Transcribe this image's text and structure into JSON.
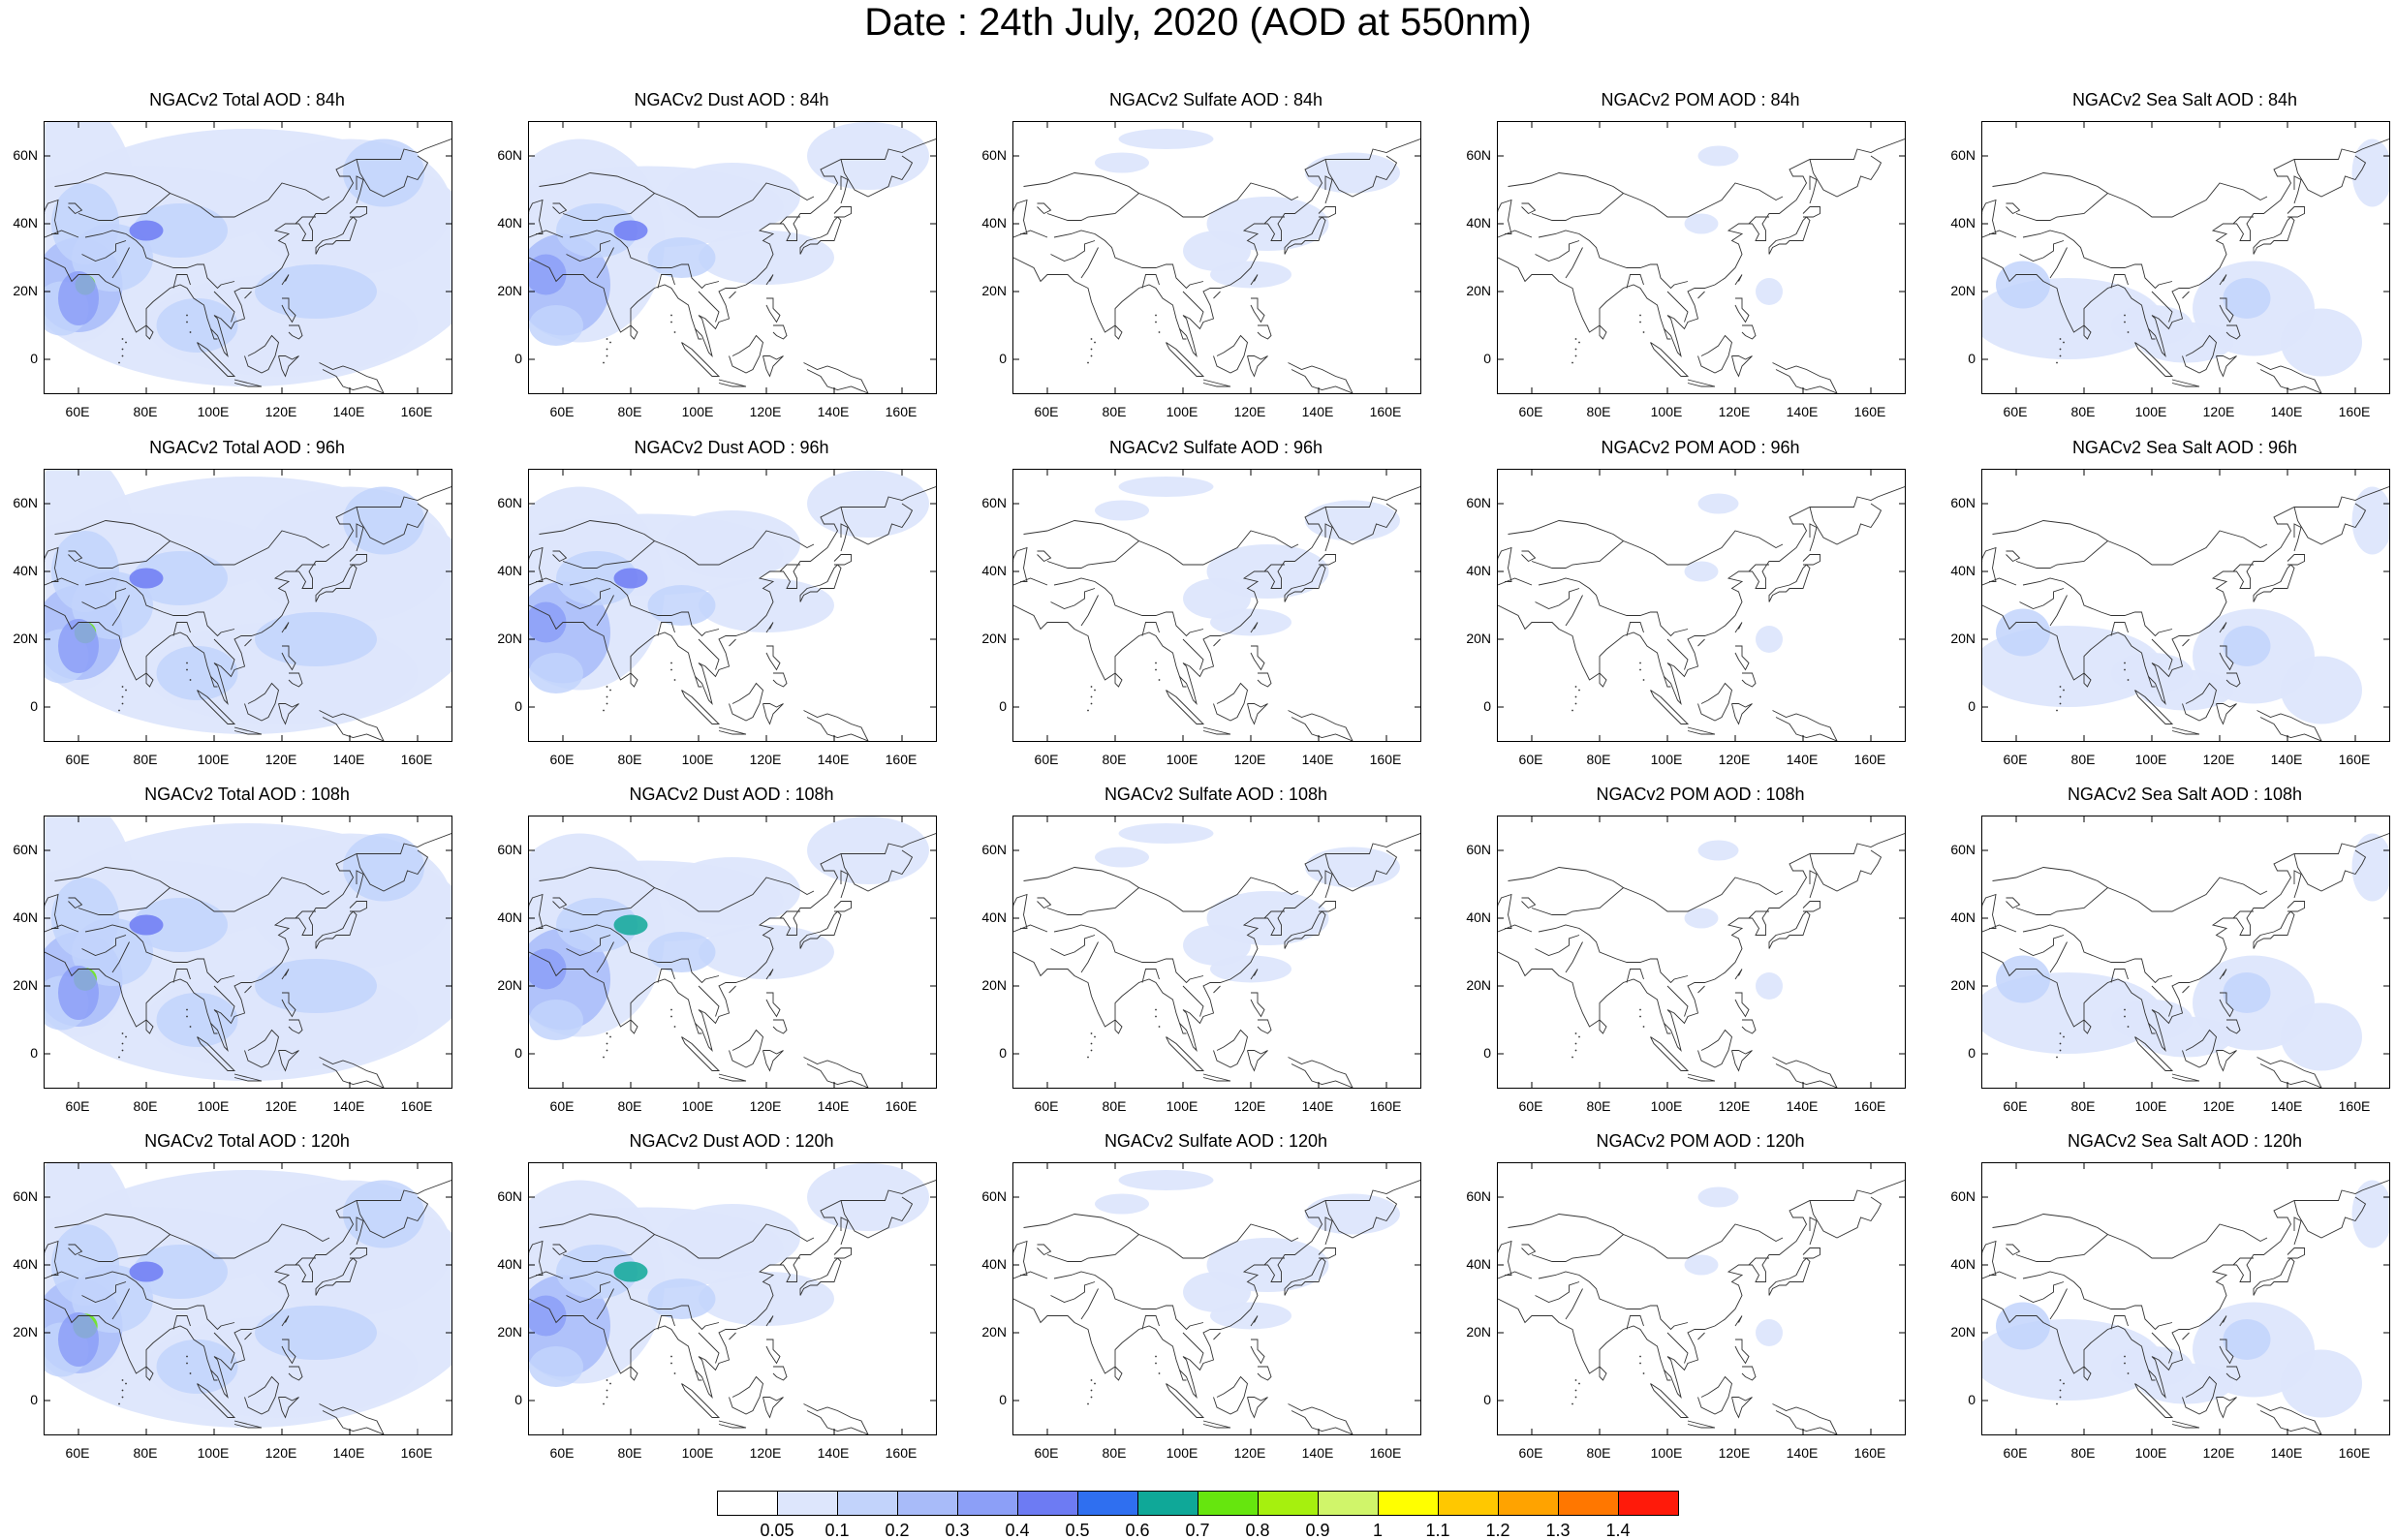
{
  "title": "Date : 24th July, 2020 (AOD at 550nm)",
  "species": [
    "Total",
    "Dust",
    "Sulfate",
    "POM",
    "Sea Salt"
  ],
  "panels": [
    [
      "NGACv2 Total AOD : 84h",
      "NGACv2 Dust AOD : 84h",
      "NGACv2 Sulfate AOD : 84h",
      "NGACv2 POM AOD : 84h",
      "NGACv2 Sea Salt AOD : 84h"
    ],
    [
      "NGACv2 Total AOD : 96h",
      "NGACv2 Dust AOD : 96h",
      "NGACv2 Sulfate AOD : 96h",
      "NGACv2 POM AOD : 96h",
      "NGACv2 Sea Salt AOD : 96h"
    ],
    [
      "NGACv2 Total AOD : 108h",
      "NGACv2 Dust AOD : 108h",
      "NGACv2 Sulfate AOD : 108h",
      "NGACv2 POM AOD : 108h",
      "NGACv2 Sea Salt AOD : 108h"
    ],
    [
      "NGACv2 Total AOD : 120h",
      "NGACv2 Dust AOD : 120h",
      "NGACv2 Sulfate AOD : 120h",
      "NGACv2 POM AOD : 120h",
      "NGACv2 Sea Salt  AOD : 120h"
    ]
  ],
  "map": {
    "lon_range": [
      50,
      170
    ],
    "lat_range": [
      -10,
      70
    ],
    "x_ticks": [
      "60E",
      "80E",
      "100E",
      "120E",
      "140E",
      "160E"
    ],
    "x_tick_values": [
      60,
      80,
      100,
      120,
      140,
      160
    ],
    "y_ticks": [
      "60N",
      "40N",
      "20N",
      "0"
    ],
    "y_tick_values": [
      60,
      40,
      20,
      0
    ]
  },
  "colorbar": {
    "labels": [
      "0.05",
      "0.1",
      "0.2",
      "0.3",
      "0.4",
      "0.5",
      "0.6",
      "0.7",
      "0.8",
      "0.9",
      "1",
      "1.1",
      "1.2",
      "1.3",
      "1.4"
    ],
    "colors": [
      "#ffffff",
      "#dde6fc",
      "#c2d3fb",
      "#a8bbf9",
      "#8c9ff7",
      "#6d7bf3",
      "#2f6ff0",
      "#0fa898",
      "#66e60e",
      "#a6f00e",
      "#d0f56a",
      "#ffff00",
      "#ffc800",
      "#ffa300",
      "#ff7700",
      "#ff1a0a"
    ]
  }
}
